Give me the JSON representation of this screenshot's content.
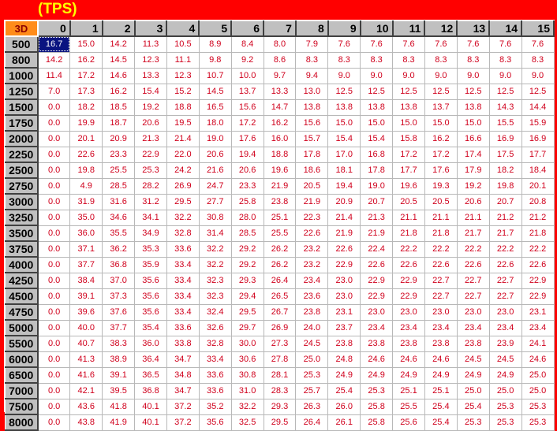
{
  "title": "(TPS)",
  "corner_label": "3D",
  "selected_cell": {
    "row": 0,
    "col": 0
  },
  "colors": {
    "background": "#ff0000",
    "title": "#ffff00",
    "corner": "#ff8c1a",
    "value_text": "#d0001c",
    "selected": "#0a1480"
  },
  "columns": [
    "0",
    "1",
    "2",
    "3",
    "4",
    "5",
    "6",
    "7",
    "8",
    "9",
    "10",
    "11",
    "12",
    "13",
    "14",
    "15"
  ],
  "rows": [
    {
      "label": "500",
      "values": [
        "16.7",
        "15.0",
        "14.2",
        "11.3",
        "10.5",
        "8.9",
        "8.4",
        "8.0",
        "7.9",
        "7.6",
        "7.6",
        "7.6",
        "7.6",
        "7.6",
        "7.6",
        "7.6"
      ]
    },
    {
      "label": "800",
      "values": [
        "14.2",
        "16.2",
        "14.5",
        "12.3",
        "11.1",
        "9.8",
        "9.2",
        "8.6",
        "8.3",
        "8.3",
        "8.3",
        "8.3",
        "8.3",
        "8.3",
        "8.3",
        "8.3"
      ]
    },
    {
      "label": "1000",
      "values": [
        "11.4",
        "17.2",
        "14.6",
        "13.3",
        "12.3",
        "10.7",
        "10.0",
        "9.7",
        "9.4",
        "9.0",
        "9.0",
        "9.0",
        "9.0",
        "9.0",
        "9.0",
        "9.0"
      ]
    },
    {
      "label": "1250",
      "values": [
        "7.0",
        "17.3",
        "16.2",
        "15.4",
        "15.2",
        "14.5",
        "13.7",
        "13.3",
        "13.0",
        "12.5",
        "12.5",
        "12.5",
        "12.5",
        "12.5",
        "12.5",
        "12.5"
      ]
    },
    {
      "label": "1500",
      "values": [
        "0.0",
        "18.2",
        "18.5",
        "19.2",
        "18.8",
        "16.5",
        "15.6",
        "14.7",
        "13.8",
        "13.8",
        "13.8",
        "13.8",
        "13.7",
        "13.8",
        "14.3",
        "14.4"
      ]
    },
    {
      "label": "1750",
      "values": [
        "0.0",
        "19.9",
        "18.7",
        "20.6",
        "19.5",
        "18.0",
        "17.2",
        "16.2",
        "15.6",
        "15.0",
        "15.0",
        "15.0",
        "15.0",
        "15.0",
        "15.5",
        "15.9"
      ]
    },
    {
      "label": "2000",
      "values": [
        "0.0",
        "20.1",
        "20.9",
        "21.3",
        "21.4",
        "19.0",
        "17.6",
        "16.0",
        "15.7",
        "15.4",
        "15.4",
        "15.8",
        "16.2",
        "16.6",
        "16.9",
        "16.9"
      ]
    },
    {
      "label": "2250",
      "values": [
        "0.0",
        "22.6",
        "23.3",
        "22.9",
        "22.0",
        "20.6",
        "19.4",
        "18.8",
        "17.8",
        "17.0",
        "16.8",
        "17.2",
        "17.2",
        "17.4",
        "17.5",
        "17.7"
      ]
    },
    {
      "label": "2500",
      "values": [
        "0.0",
        "19.8",
        "25.5",
        "25.3",
        "24.2",
        "21.6",
        "20.6",
        "19.6",
        "18.6",
        "18.1",
        "17.8",
        "17.7",
        "17.6",
        "17.9",
        "18.2",
        "18.4"
      ]
    },
    {
      "label": "2750",
      "values": [
        "0.0",
        "4.9",
        "28.5",
        "28.2",
        "26.9",
        "24.7",
        "23.3",
        "21.9",
        "20.5",
        "19.4",
        "19.0",
        "19.6",
        "19.3",
        "19.2",
        "19.8",
        "20.1"
      ]
    },
    {
      "label": "3000",
      "values": [
        "0.0",
        "31.9",
        "31.6",
        "31.2",
        "29.5",
        "27.7",
        "25.8",
        "23.8",
        "21.9",
        "20.9",
        "20.7",
        "20.5",
        "20.5",
        "20.6",
        "20.7",
        "20.8"
      ]
    },
    {
      "label": "3250",
      "values": [
        "0.0",
        "35.0",
        "34.6",
        "34.1",
        "32.2",
        "30.8",
        "28.0",
        "25.1",
        "22.3",
        "21.4",
        "21.3",
        "21.1",
        "21.1",
        "21.1",
        "21.2",
        "21.2"
      ]
    },
    {
      "label": "3500",
      "values": [
        "0.0",
        "36.0",
        "35.5",
        "34.9",
        "32.8",
        "31.4",
        "28.5",
        "25.5",
        "22.6",
        "21.9",
        "21.9",
        "21.8",
        "21.8",
        "21.7",
        "21.7",
        "21.8"
      ]
    },
    {
      "label": "3750",
      "values": [
        "0.0",
        "37.1",
        "36.2",
        "35.3",
        "33.6",
        "32.2",
        "29.2",
        "26.2",
        "23.2",
        "22.6",
        "22.4",
        "22.2",
        "22.2",
        "22.2",
        "22.2",
        "22.2"
      ]
    },
    {
      "label": "4000",
      "values": [
        "0.0",
        "37.7",
        "36.8",
        "35.9",
        "33.4",
        "32.2",
        "29.2",
        "26.2",
        "23.2",
        "22.9",
        "22.6",
        "22.6",
        "22.6",
        "22.6",
        "22.6",
        "22.6"
      ]
    },
    {
      "label": "4250",
      "values": [
        "0.0",
        "38.4",
        "37.0",
        "35.6",
        "33.4",
        "32.3",
        "29.3",
        "26.4",
        "23.4",
        "23.0",
        "22.9",
        "22.9",
        "22.7",
        "22.7",
        "22.7",
        "22.9"
      ]
    },
    {
      "label": "4500",
      "values": [
        "0.0",
        "39.1",
        "37.3",
        "35.6",
        "33.4",
        "32.3",
        "29.4",
        "26.5",
        "23.6",
        "23.0",
        "22.9",
        "22.9",
        "22.7",
        "22.7",
        "22.7",
        "22.9"
      ]
    },
    {
      "label": "4750",
      "values": [
        "0.0",
        "39.6",
        "37.6",
        "35.6",
        "33.4",
        "32.4",
        "29.5",
        "26.7",
        "23.8",
        "23.1",
        "23.0",
        "23.0",
        "23.0",
        "23.0",
        "23.0",
        "23.1"
      ]
    },
    {
      "label": "5000",
      "values": [
        "0.0",
        "40.0",
        "37.7",
        "35.4",
        "33.6",
        "32.6",
        "29.7",
        "26.9",
        "24.0",
        "23.7",
        "23.4",
        "23.4",
        "23.4",
        "23.4",
        "23.4",
        "23.4"
      ]
    },
    {
      "label": "5500",
      "values": [
        "0.0",
        "40.7",
        "38.3",
        "36.0",
        "33.8",
        "32.8",
        "30.0",
        "27.3",
        "24.5",
        "23.8",
        "23.8",
        "23.8",
        "23.8",
        "23.8",
        "23.9",
        "24.1"
      ]
    },
    {
      "label": "6000",
      "values": [
        "0.0",
        "41.3",
        "38.9",
        "36.4",
        "34.7",
        "33.4",
        "30.6",
        "27.8",
        "25.0",
        "24.8",
        "24.6",
        "24.6",
        "24.6",
        "24.5",
        "24.5",
        "24.6"
      ]
    },
    {
      "label": "6500",
      "values": [
        "0.0",
        "41.6",
        "39.1",
        "36.5",
        "34.8",
        "33.6",
        "30.8",
        "28.1",
        "25.3",
        "24.9",
        "24.9",
        "24.9",
        "24.9",
        "24.9",
        "24.9",
        "25.0"
      ]
    },
    {
      "label": "7000",
      "values": [
        "0.0",
        "42.1",
        "39.5",
        "36.8",
        "34.7",
        "33.6",
        "31.0",
        "28.3",
        "25.7",
        "25.4",
        "25.3",
        "25.1",
        "25.1",
        "25.0",
        "25.0",
        "25.0"
      ]
    },
    {
      "label": "7500",
      "values": [
        "0.0",
        "43.6",
        "41.8",
        "40.1",
        "37.2",
        "35.2",
        "32.2",
        "29.3",
        "26.3",
        "26.0",
        "25.8",
        "25.5",
        "25.4",
        "25.4",
        "25.3",
        "25.3"
      ]
    },
    {
      "label": "8000",
      "values": [
        "0.0",
        "43.8",
        "41.9",
        "40.1",
        "37.2",
        "35.6",
        "32.5",
        "29.5",
        "26.4",
        "26.1",
        "25.8",
        "25.6",
        "25.4",
        "25.3",
        "25.3",
        "25.3"
      ]
    }
  ]
}
